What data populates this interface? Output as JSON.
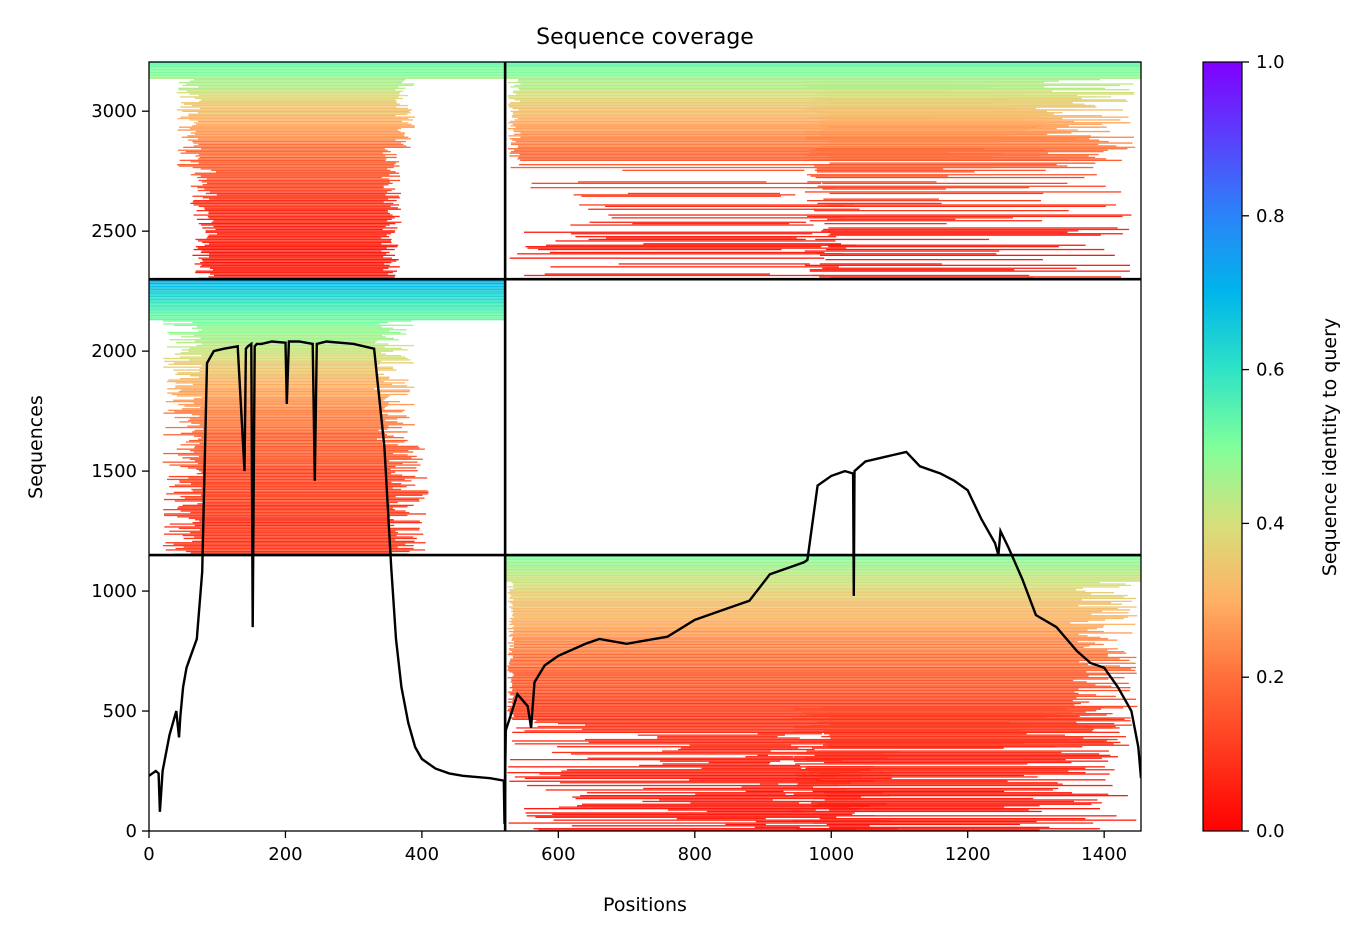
{
  "chart_data": {
    "type": "heatmap",
    "title": "Sequence coverage",
    "xlabel": "Positions",
    "ylabel": "Sequences",
    "xlim": [
      0,
      1454
    ],
    "ylim": [
      0,
      3205
    ],
    "x_ticks": [
      0,
      200,
      400,
      600,
      800,
      1000,
      1200,
      1400
    ],
    "y_ticks": [
      0,
      500,
      1000,
      1500,
      2000,
      2500,
      3000
    ],
    "grid": false,
    "colorbar": {
      "label": "Sequence identity to query",
      "range": [
        0.0,
        1.0
      ],
      "ticks": [
        "0.0",
        "0.2",
        "0.4",
        "0.6",
        "0.8",
        "1.0"
      ],
      "colormap": "rainbow_r"
    },
    "chain_boundary_x": 522,
    "chain_boundaries_y": [
      1150,
      2300
    ],
    "blocks": [
      {
        "name": "chain-A-A",
        "x_range": [
          0,
          522
        ],
        "y_range": [
          2300,
          3205
        ],
        "identity_range": [
          0.05,
          0.55
        ]
      },
      {
        "name": "chain-B-A",
        "x_range": [
          522,
          1454
        ],
        "y_range": [
          2300,
          3205
        ],
        "identity_range": [
          0.05,
          0.55
        ]
      },
      {
        "name": "chain-A-B",
        "x_range": [
          0,
          522
        ],
        "y_range": [
          1150,
          2300
        ],
        "identity_range": [
          0.1,
          0.7
        ]
      },
      {
        "name": "chain-B-C",
        "x_range": [
          522,
          1454
        ],
        "y_range": [
          0,
          1150
        ],
        "identity_range": [
          0.05,
          0.5
        ]
      }
    ],
    "coverage_line": {
      "x": [
        0,
        10,
        14,
        16,
        20,
        30,
        40,
        44,
        46,
        50,
        55,
        60,
        70,
        78,
        85,
        95,
        110,
        130,
        140,
        142,
        145,
        150,
        152,
        155,
        158,
        165,
        180,
        200,
        202,
        205,
        220,
        240,
        243,
        246,
        260,
        300,
        330,
        345,
        355,
        362,
        370,
        380,
        390,
        400,
        420,
        440,
        460,
        500,
        520,
        521,
        523,
        530,
        540,
        555,
        560,
        565,
        580,
        600,
        640,
        660,
        700,
        760,
        800,
        840,
        880,
        910,
        940,
        960,
        965,
        980,
        1000,
        1020,
        1032,
        1033,
        1034,
        1050,
        1080,
        1110,
        1130,
        1160,
        1180,
        1200,
        1220,
        1240,
        1245,
        1248,
        1260,
        1280,
        1300,
        1330,
        1360,
        1380,
        1400,
        1420,
        1440,
        1450,
        1454
      ],
      "y": [
        230,
        250,
        240,
        80,
        250,
        400,
        500,
        390,
        480,
        600,
        680,
        720,
        800,
        1080,
        1950,
        2000,
        2010,
        2020,
        1500,
        2010,
        2020,
        2030,
        850,
        2020,
        2030,
        2030,
        2040,
        2035,
        1780,
        2040,
        2040,
        2030,
        1460,
        2030,
        2040,
        2030,
        2010,
        1600,
        1100,
        800,
        600,
        450,
        350,
        300,
        260,
        240,
        230,
        220,
        210,
        30,
        420,
        480,
        570,
        520,
        430,
        620,
        690,
        730,
        780,
        800,
        780,
        810,
        880,
        920,
        960,
        1070,
        1100,
        1120,
        1130,
        1440,
        1480,
        1500,
        1490,
        980,
        1500,
        1540,
        1560,
        1580,
        1520,
        1490,
        1460,
        1420,
        1300,
        1200,
        1150,
        1250,
        1180,
        1050,
        900,
        850,
        750,
        700,
        680,
        600,
        500,
        350,
        220
      ]
    }
  }
}
